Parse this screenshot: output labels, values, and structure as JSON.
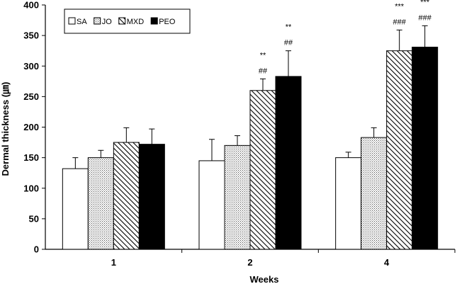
{
  "chart_data": {
    "type": "bar",
    "title": "",
    "xlabel": "Weeks",
    "ylabel": "Dermal thickness (㎛)",
    "ylim": [
      0,
      400
    ],
    "yticks": [
      0,
      50,
      100,
      150,
      200,
      250,
      300,
      350,
      400
    ],
    "categories": [
      "1",
      "2",
      "4"
    ],
    "legend_position": "top-left",
    "series": [
      {
        "name": "SA",
        "fill": "white",
        "values": [
          132,
          145,
          150
        ],
        "errors": [
          18,
          35,
          9
        ],
        "annotations": [
          [],
          [],
          []
        ]
      },
      {
        "name": "JO",
        "fill": "dotted",
        "values": [
          150,
          170,
          183
        ],
        "errors": [
          12,
          16,
          16
        ],
        "annotations": [
          [],
          [],
          []
        ]
      },
      {
        "name": "MXD",
        "fill": "hatched",
        "values": [
          175,
          260,
          325
        ],
        "errors": [
          24,
          19,
          34
        ],
        "annotations": [
          [],
          [
            "**",
            "##"
          ],
          [
            "***",
            "###"
          ]
        ]
      },
      {
        "name": "PEO",
        "fill": "black",
        "values": [
          172,
          283,
          331
        ],
        "errors": [
          25,
          42,
          35
        ],
        "annotations": [
          [],
          [
            "**",
            "##"
          ],
          [
            "***",
            "###"
          ]
        ]
      }
    ]
  }
}
